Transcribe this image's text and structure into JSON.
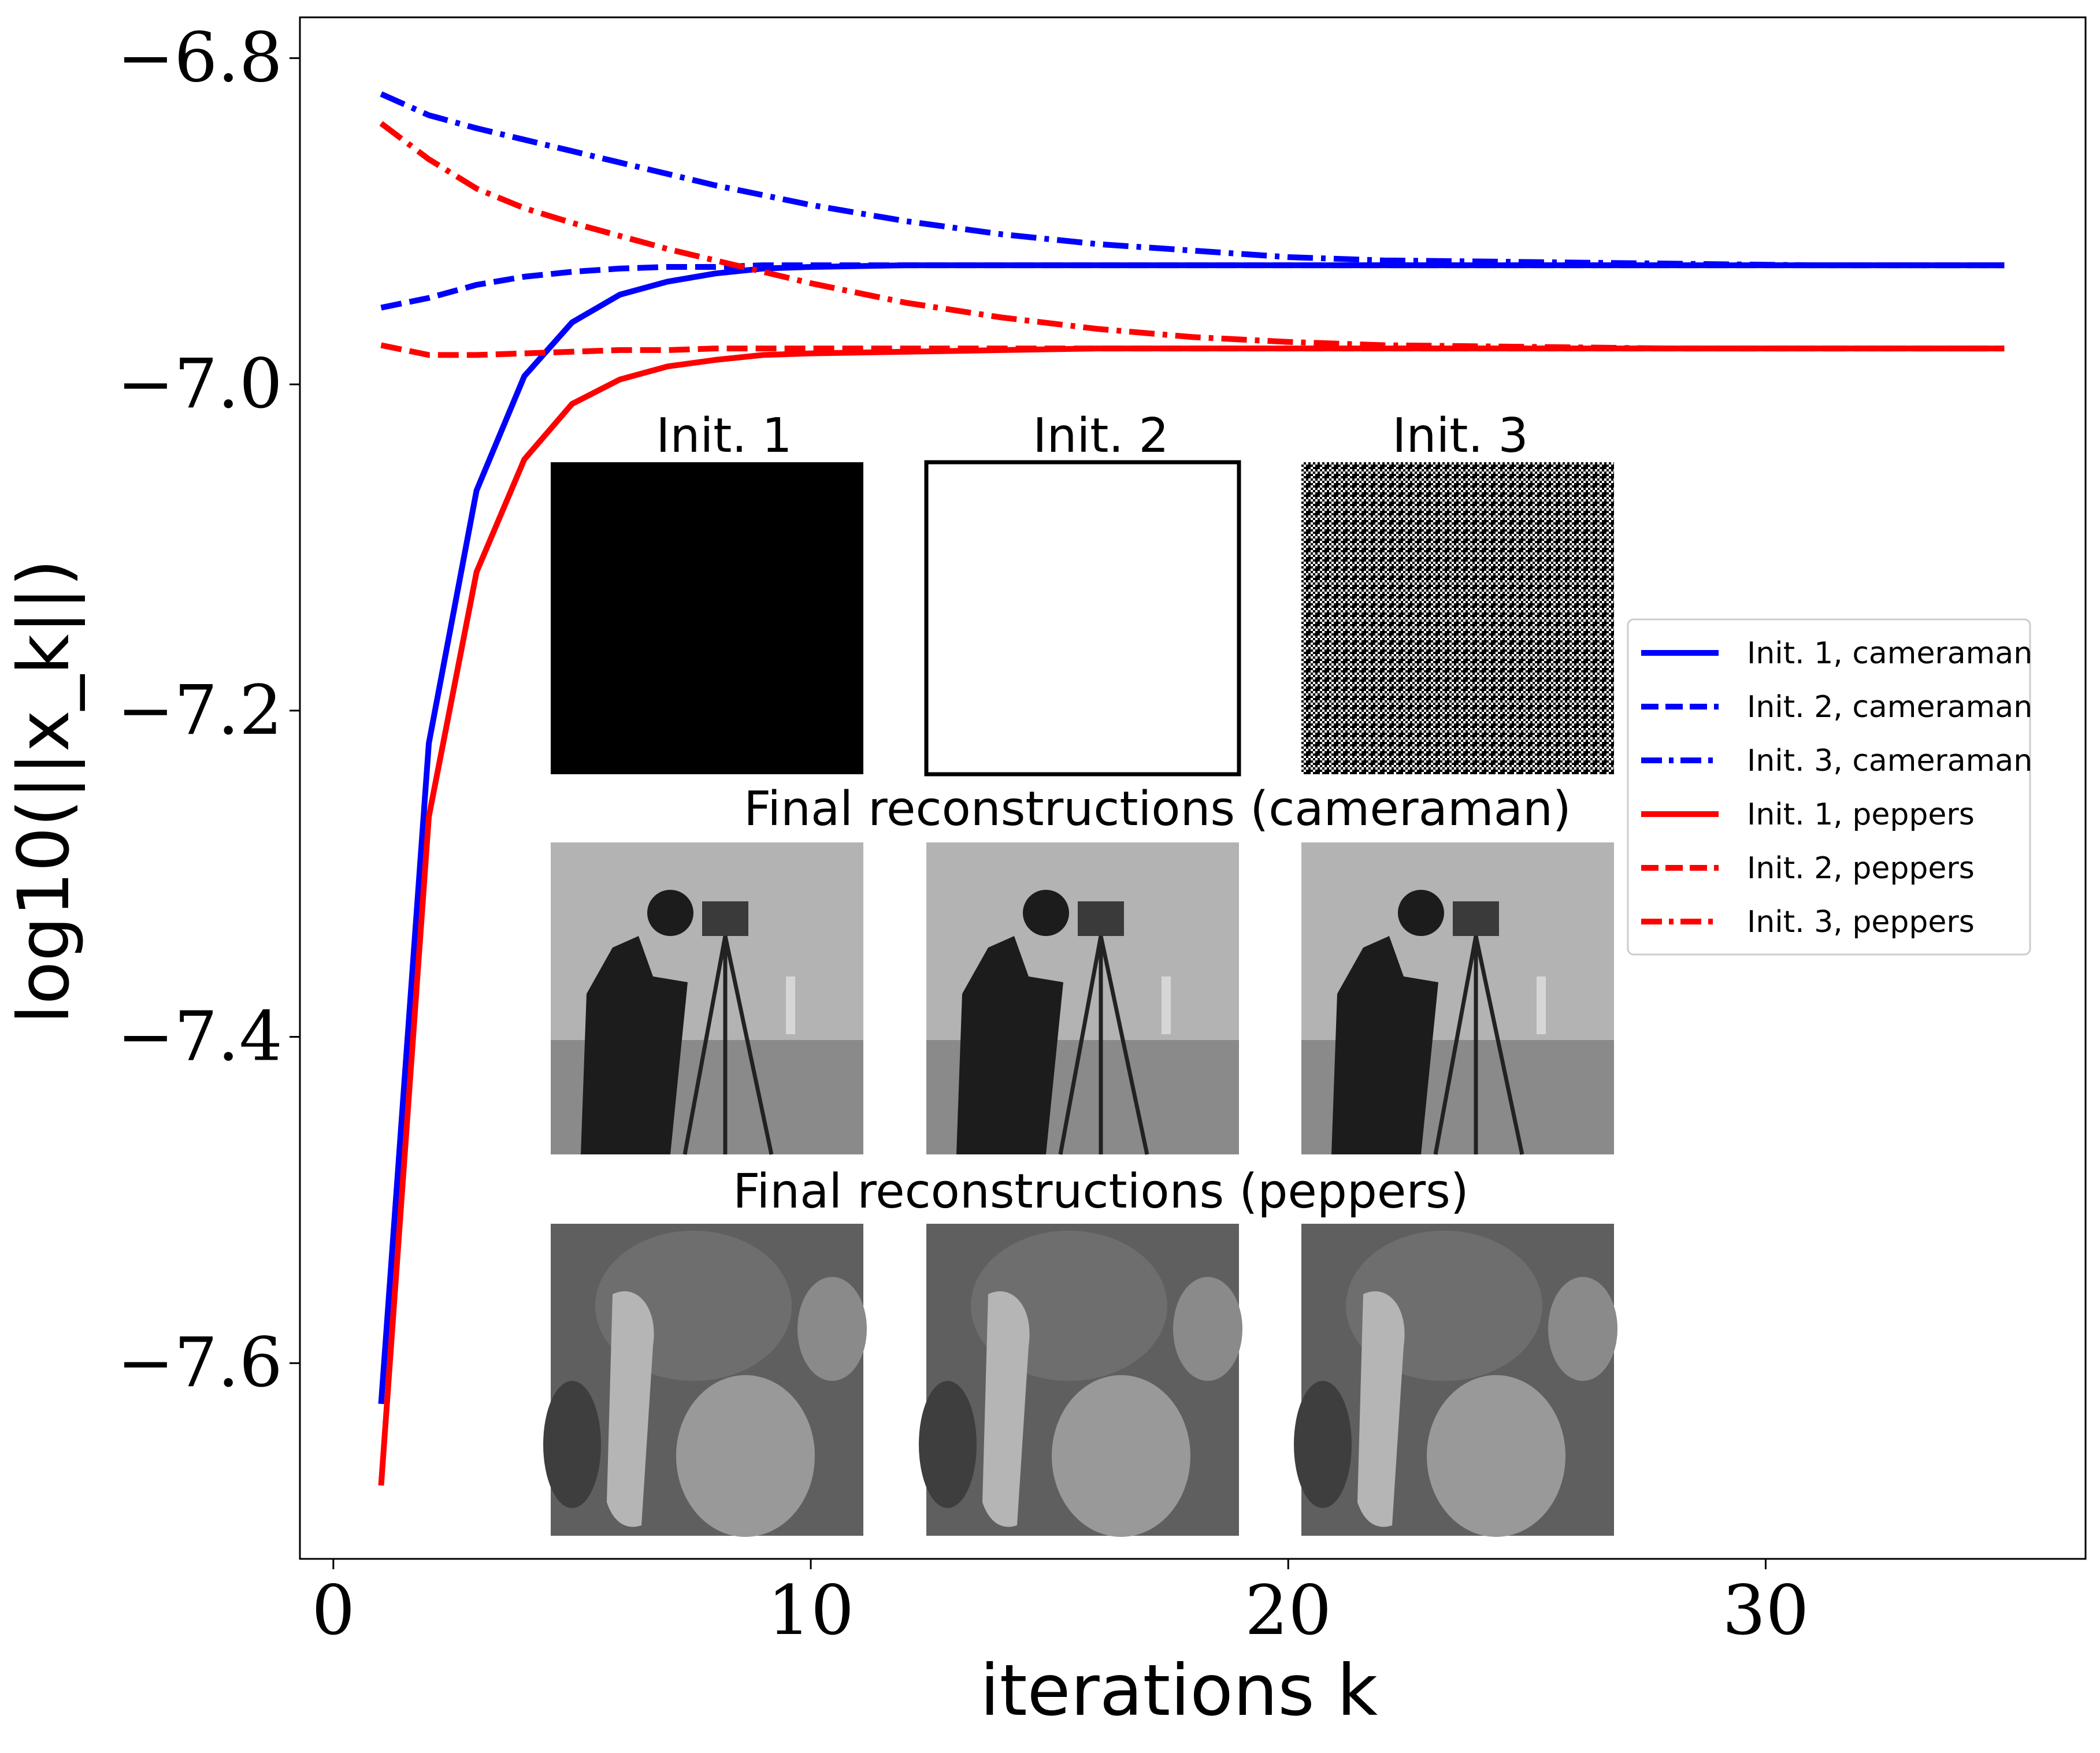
{
  "chart_data": {
    "type": "line",
    "title": "",
    "xlabel": "iterations k",
    "ylabel": "log10(||x_k||)",
    "xlim": [
      -0.7,
      36.7
    ],
    "ylim": [
      -7.72,
      -6.775
    ],
    "x_ticks": [
      0,
      10,
      20,
      30
    ],
    "x_tick_labels": [
      "0",
      "10",
      "20",
      "30"
    ],
    "y_ticks": [
      -6.8,
      -7.0,
      -7.2,
      -7.4,
      -7.6
    ],
    "y_tick_labels": [
      "−6.8",
      "−7.0",
      "−7.2",
      "−7.4",
      "−7.6"
    ],
    "grid": false,
    "legend_position": "center-right",
    "x": [
      1,
      2,
      3,
      4,
      5,
      6,
      7,
      8,
      9,
      10,
      12,
      14,
      16,
      18,
      20,
      22,
      25,
      28,
      31,
      35
    ],
    "series": [
      {
        "name": "Init. 1, cameraman",
        "color": "#0000ff",
        "style": "solid",
        "values": [
          -7.625,
          -7.22,
          -7.065,
          -6.995,
          -6.962,
          -6.945,
          -6.937,
          -6.932,
          -6.929,
          -6.928,
          -6.927,
          -6.927,
          -6.927,
          -6.927,
          -6.927,
          -6.927,
          -6.927,
          -6.927,
          -6.927,
          -6.927
        ]
      },
      {
        "name": "Init. 2, cameraman",
        "color": "#0000ff",
        "style": "dashed",
        "values": [
          -6.953,
          -6.947,
          -6.939,
          -6.934,
          -6.931,
          -6.929,
          -6.928,
          -6.928,
          -6.927,
          -6.927,
          -6.927,
          -6.927,
          -6.927,
          -6.927,
          -6.927,
          -6.927,
          -6.927,
          -6.927,
          -6.927,
          -6.927
        ]
      },
      {
        "name": "Init. 3, cameraman",
        "color": "#0000ff",
        "style": "dashdot",
        "values": [
          -6.822,
          -6.835,
          -6.843,
          -6.85,
          -6.857,
          -6.864,
          -6.871,
          -6.878,
          -6.884,
          -6.89,
          -6.9,
          -6.908,
          -6.914,
          -6.918,
          -6.922,
          -6.924,
          -6.925,
          -6.926,
          -6.927,
          -6.927
        ]
      },
      {
        "name": "Init. 1, peppers",
        "color": "#ff0000",
        "style": "solid",
        "values": [
          -7.675,
          -7.265,
          -7.115,
          -7.046,
          -7.012,
          -6.997,
          -6.989,
          -6.985,
          -6.982,
          -6.981,
          -6.98,
          -6.979,
          -6.978,
          -6.978,
          -6.978,
          -6.978,
          -6.978,
          -6.978,
          -6.978,
          -6.978
        ]
      },
      {
        "name": "Init. 2, peppers",
        "color": "#ff0000",
        "style": "dashed",
        "values": [
          -6.976,
          -6.982,
          -6.982,
          -6.981,
          -6.98,
          -6.979,
          -6.979,
          -6.978,
          -6.978,
          -6.978,
          -6.978,
          -6.978,
          -6.978,
          -6.978,
          -6.978,
          -6.978,
          -6.978,
          -6.978,
          -6.978,
          -6.978
        ]
      },
      {
        "name": "Init. 3, peppers",
        "color": "#ff0000",
        "style": "dashdot",
        "values": [
          -6.84,
          -6.862,
          -6.88,
          -6.892,
          -6.901,
          -6.909,
          -6.917,
          -6.924,
          -6.931,
          -6.938,
          -6.95,
          -6.959,
          -6.966,
          -6.971,
          -6.974,
          -6.976,
          -6.977,
          -6.978,
          -6.978,
          -6.978
        ]
      }
    ],
    "inset": {
      "init_titles": [
        "Init. 1",
        "Init. 2",
        "Init. 3"
      ],
      "row_title_cameraman": "Final reconstructions (cameraman)",
      "row_title_peppers": "Final reconstructions (peppers)"
    }
  }
}
